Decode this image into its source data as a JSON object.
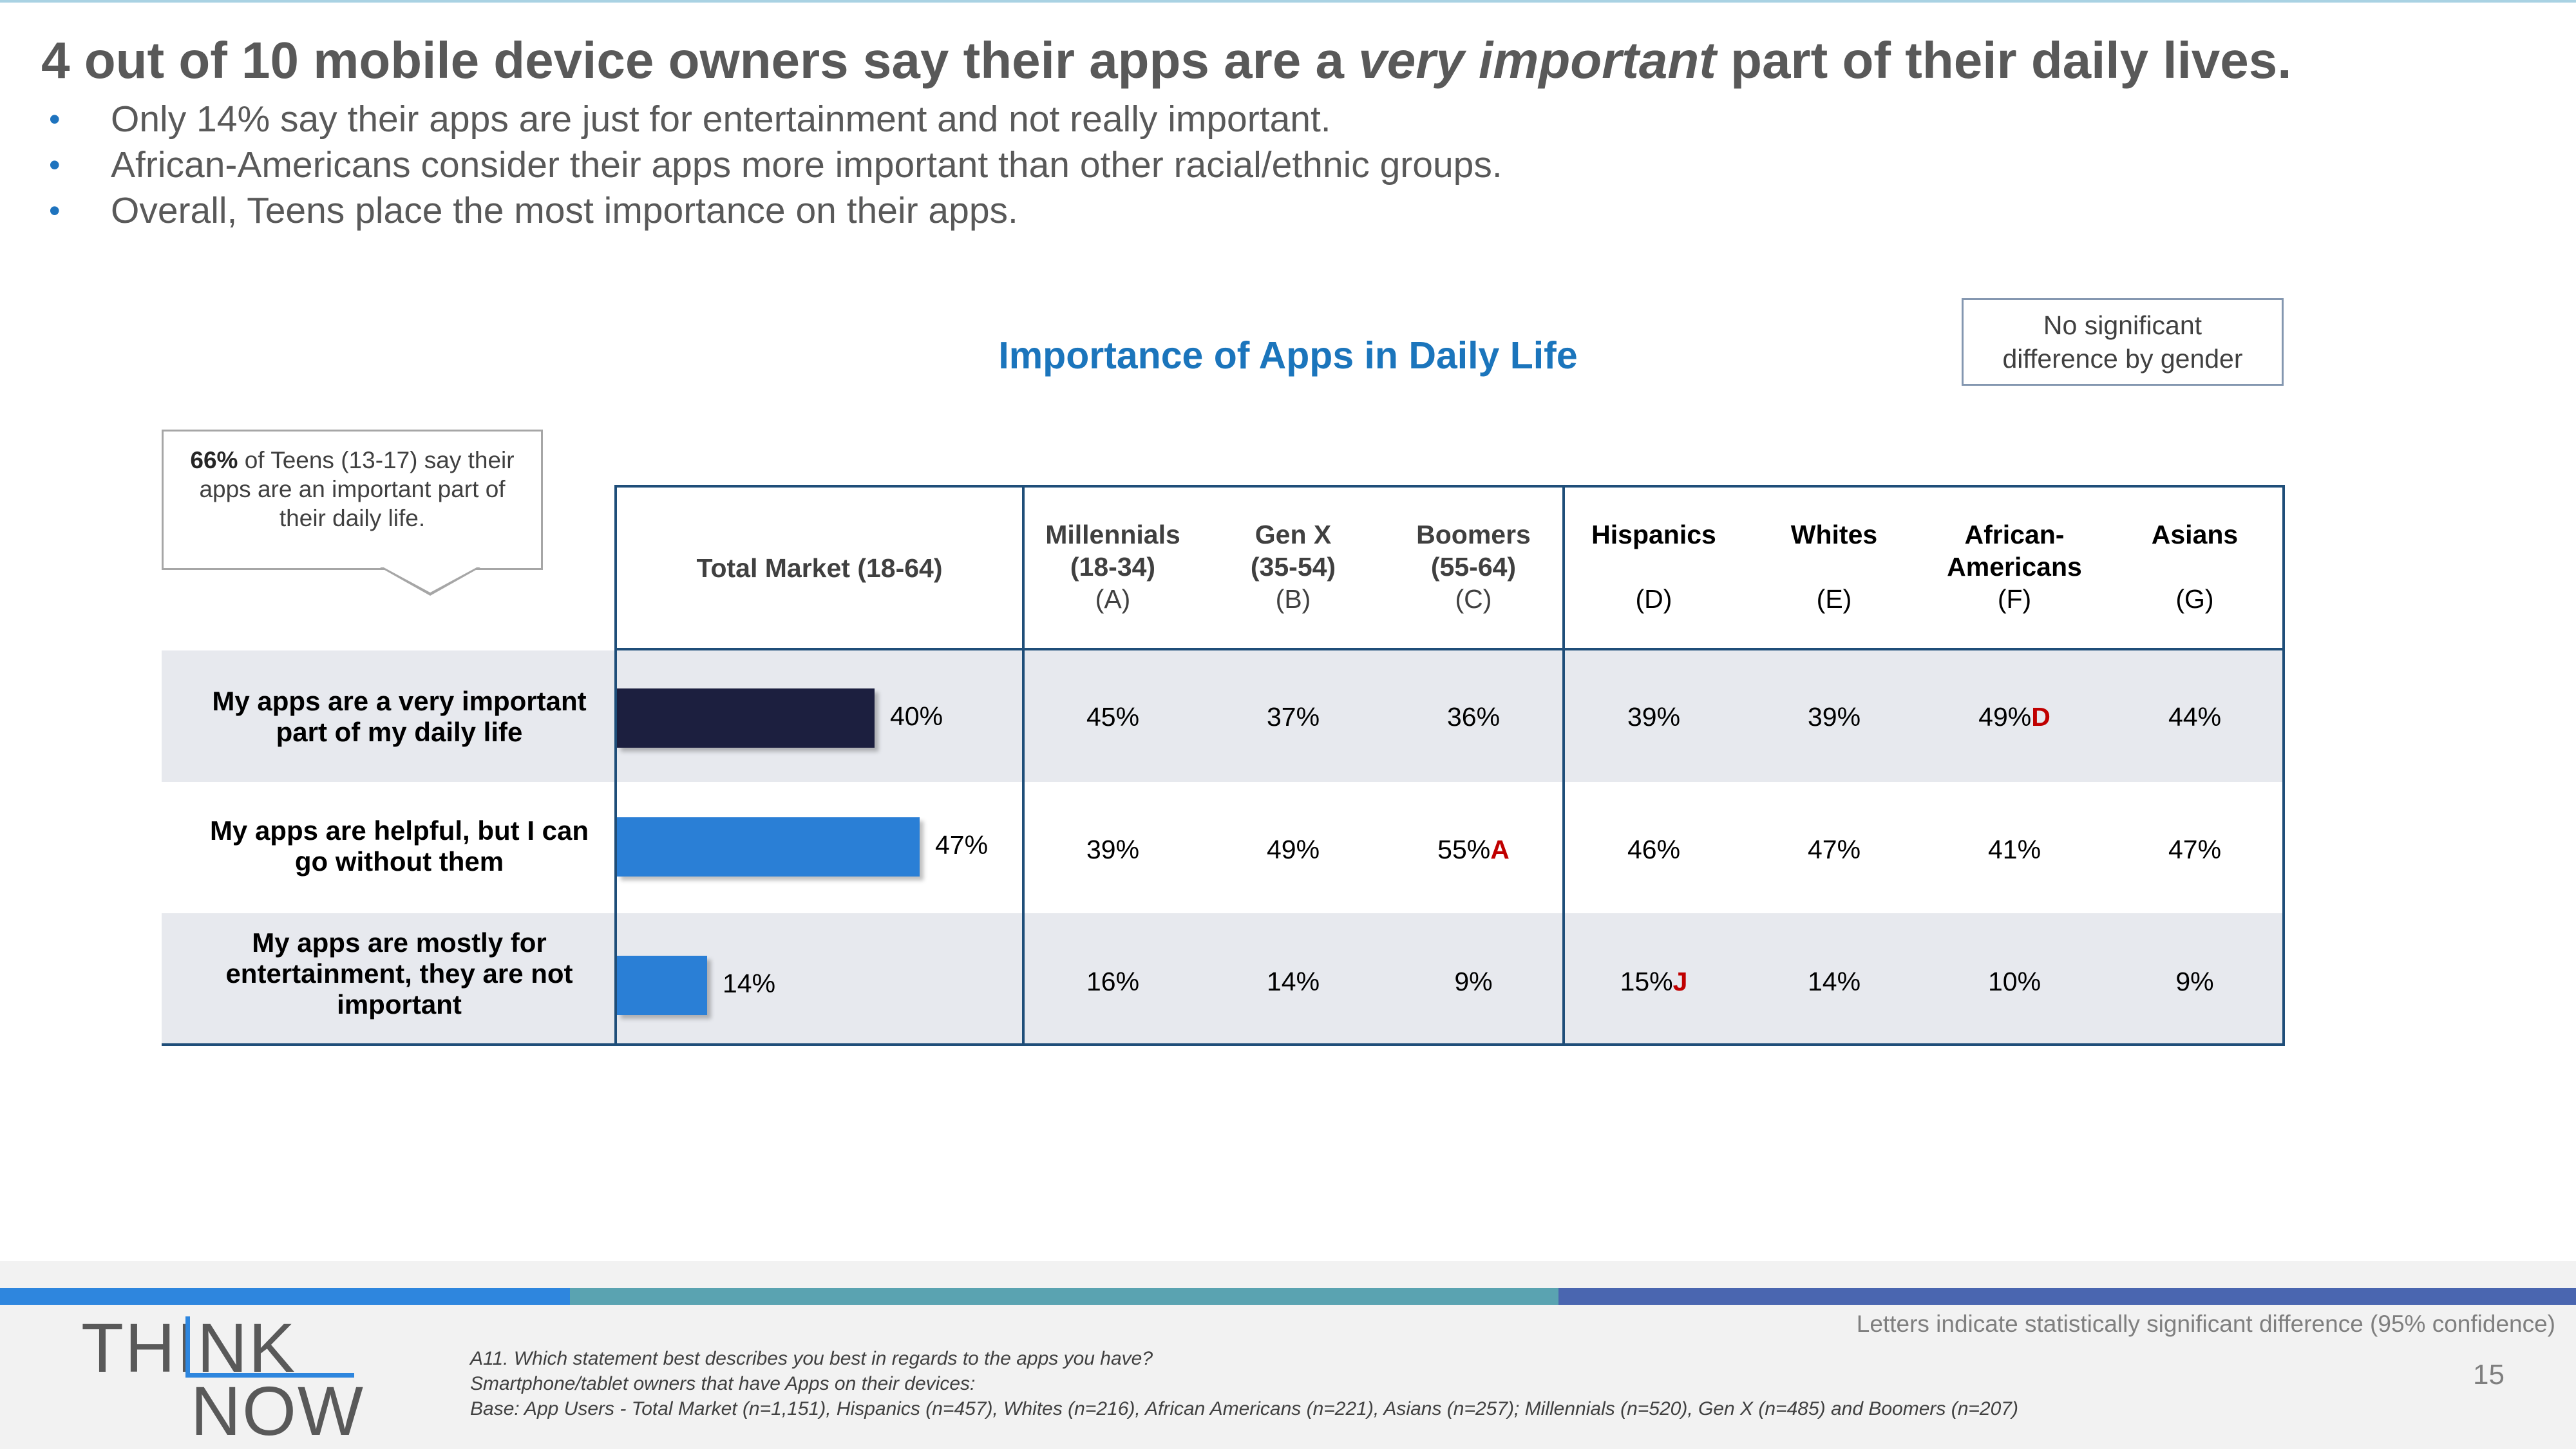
{
  "slide": {
    "title_before": "4 out of 10 mobile device owners say their apps are a ",
    "title_emph": "very important",
    "title_after": " part of their daily lives.",
    "bullet_glyph": "•",
    "bullets": [
      "Only 14% say their apps are just for entertainment and not really important.",
      "African-Americans consider their apps more important than other racial/ethnic groups.",
      "Overall, Teens place the most importance on their apps."
    ],
    "gender_note_line1": "No significant",
    "gender_note_line2": "difference by gender",
    "callout_bold": "66%",
    "callout_line1": " of Teens (13-17) say their",
    "callout_line2": "apps are an important part of",
    "callout_line3": "their daily life.",
    "logo_top": "THINK",
    "logo_bottom": "NOW",
    "sig_note": "Letters indicate statistically significant difference (95% confidence)",
    "page_number": "15",
    "notes": [
      "A11. Which statement best describes you best in regards to the apps you have?",
      "Smartphone/tablet owners that have Apps on their devices:",
      "Base: App Users - Total Market (n=1,151), Hispanics (n=457), Whites (n=216), African Americans (n=221), Asians (n=257); Millennials (n=520), Gen X (n=485) and Boomers (n=207)"
    ]
  },
  "chart_data": {
    "type": "table",
    "title": "Importance of Apps in Daily Life",
    "total_header": "Total Market (18-64)",
    "columns": [
      {
        "line1": "Millennials",
        "line2": "(18-34)",
        "letter": "(A)"
      },
      {
        "line1": "Gen X",
        "line2": "(35-54)",
        "letter": "(B)"
      },
      {
        "line1": "Boomers",
        "line2": "(55-64)",
        "letter": "(C)"
      },
      {
        "line1": "Hispanics",
        "line2": "",
        "letter": "(D)"
      },
      {
        "line1": "Whites",
        "line2": "",
        "letter": "(E)"
      },
      {
        "line1": "African-",
        "line2": "Americans",
        "letter": "(F)"
      },
      {
        "line1": "Asians",
        "line2": "",
        "letter": "(G)"
      }
    ],
    "rows": [
      {
        "label_line1": "My apps are a very important",
        "label_line2": "part of my daily life",
        "label_line3": "",
        "total": 40,
        "total_label": "40%",
        "values": [
          "45%",
          "37%",
          "36%",
          "39%",
          "39%",
          "49%",
          "44%"
        ],
        "sig": [
          "",
          "",
          "",
          "",
          "",
          "D",
          ""
        ]
      },
      {
        "label_line1": "My apps are helpful, but I can",
        "label_line2": "go without them",
        "label_line3": "",
        "total": 47,
        "total_label": "47%",
        "values": [
          "39%",
          "49%",
          "55%",
          "46%",
          "47%",
          "41%",
          "47%"
        ],
        "sig": [
          "",
          "",
          "A",
          "",
          "",
          "",
          ""
        ]
      },
      {
        "label_line1": "My apps are mostly for",
        "label_line2": "entertainment, they are not",
        "label_line3": "important",
        "total": 14,
        "total_label": "14%",
        "values": [
          "16%",
          "14%",
          "9%",
          "15%",
          "14%",
          "10%",
          "9%"
        ],
        "sig": [
          "",
          "",
          "",
          "J",
          "",
          "",
          ""
        ]
      }
    ],
    "bar_colors": [
      "#1c1f3f",
      "#2a7fd6",
      "#2a7fd6"
    ],
    "significance_color": "#c00000",
    "accent": "#1b75bc"
  }
}
